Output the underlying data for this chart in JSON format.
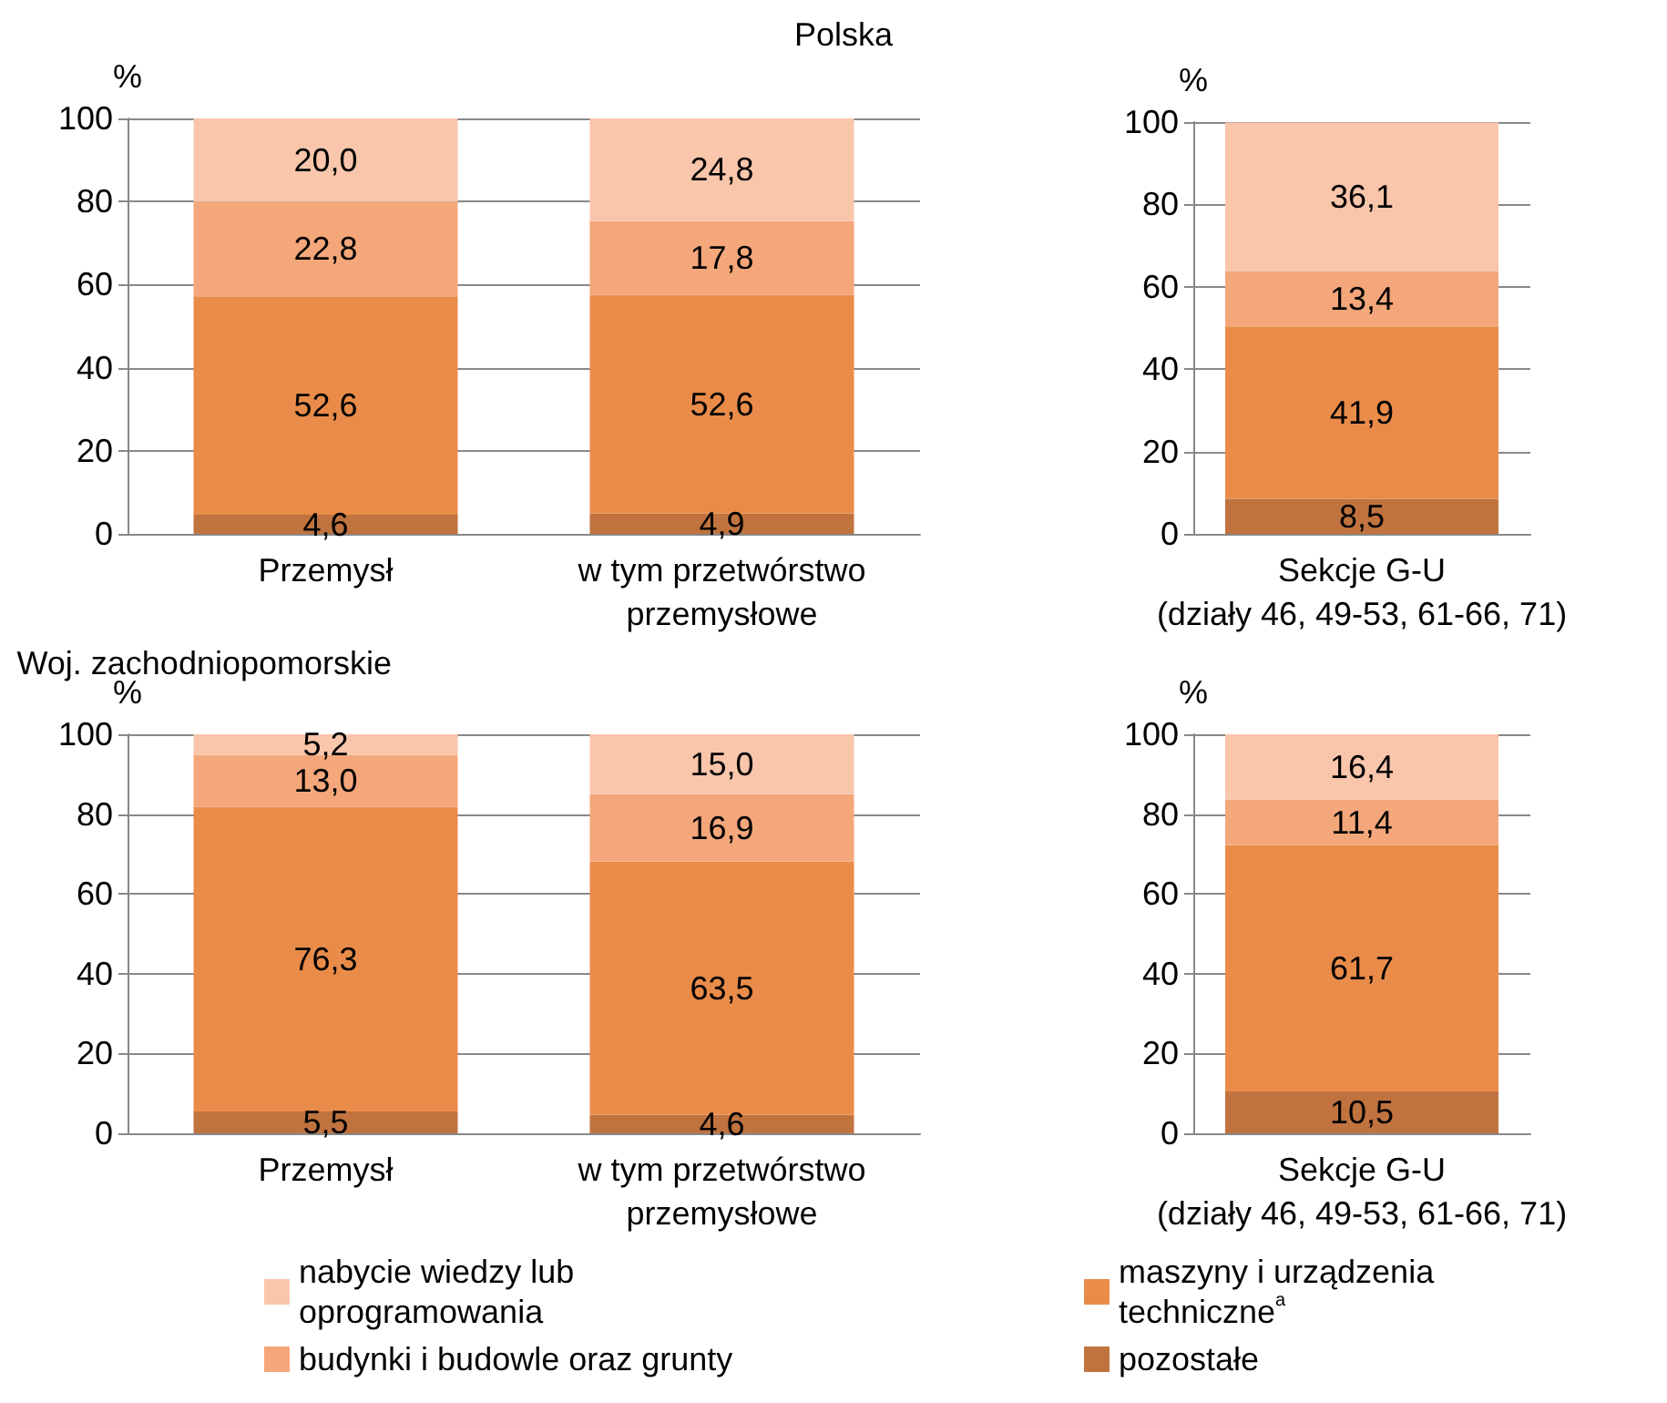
{
  "chart_data": [
    {
      "type": "bar",
      "title": "Polska",
      "ylabel": "%",
      "categories": [
        "Przemysł",
        "w tym przetwórstwo\nprzemysłowe"
      ],
      "stacked": true,
      "grid": "y",
      "ylim": [
        0,
        100
      ],
      "yticks": [
        0,
        20,
        40,
        60,
        80,
        100
      ],
      "legend": false,
      "series": [
        {
          "color": "#c0733f",
          "values": [
            4.6,
            4.9
          ],
          "value_labels": [
            "4,6",
            "4,9"
          ]
        },
        {
          "color": "#e98c4a",
          "values": [
            52.6,
            52.6
          ],
          "value_labels": [
            "52,6",
            "52,6"
          ]
        },
        {
          "color": "#f4a77a",
          "values": [
            22.8,
            17.8
          ],
          "value_labels": [
            "22,8",
            "17,8"
          ]
        },
        {
          "color": "#f9c6ab",
          "values": [
            20.0,
            24.8
          ],
          "value_labels": [
            "20,0",
            "24,8"
          ]
        }
      ]
    },
    {
      "type": "bar",
      "ylabel": "%",
      "categories": [
        "Sekcje G-U\n(działy 46, 49-53, 61-66, 71)"
      ],
      "stacked": true,
      "grid": "y",
      "ylim": [
        0,
        100
      ],
      "yticks": [
        0,
        20,
        40,
        60,
        80,
        100
      ],
      "legend": false,
      "series": [
        {
          "color": "#c0733f",
          "values": [
            8.5
          ],
          "value_labels": [
            "8,5"
          ]
        },
        {
          "color": "#e98c4a",
          "values": [
            41.9
          ],
          "value_labels": [
            "41,9"
          ]
        },
        {
          "color": "#f4a77a",
          "values": [
            13.4
          ],
          "value_labels": [
            "13,4"
          ]
        },
        {
          "color": "#f9c6ab",
          "values": [
            36.1
          ],
          "value_labels": [
            "36,1"
          ]
        }
      ]
    },
    {
      "type": "bar",
      "title": "Woj. zachodniopomorskie",
      "ylabel": "%",
      "categories": [
        "Przemysł",
        "w tym przetwórstwo\nprzemysłowe"
      ],
      "stacked": true,
      "grid": "y",
      "ylim": [
        0,
        100
      ],
      "yticks": [
        0,
        20,
        40,
        60,
        80,
        100
      ],
      "legend": "bottom left",
      "series": [
        {
          "color": "#c0733f",
          "values": [
            5.5,
            4.6
          ],
          "value_labels": [
            "5,5",
            "4,6"
          ]
        },
        {
          "color": "#e98c4a",
          "values": [
            76.3,
            63.5
          ],
          "value_labels": [
            "76,3",
            "63,5"
          ]
        },
        {
          "name": "budynki i budowle oraz grunty",
          "color": "#f4a77a",
          "values": [
            13.0,
            16.9
          ],
          "value_labels": [
            "13,0",
            "16,9"
          ]
        },
        {
          "name": "nabycie wiedzy lub oprogramowania",
          "color": "#f9c6ab",
          "values": [
            5.2,
            15.0
          ],
          "value_labels": [
            "5,2",
            "15,0"
          ]
        }
      ]
    },
    {
      "type": "bar",
      "ylabel": "%",
      "categories": [
        "Sekcje G-U\n(działy 46, 49-53, 61-66, 71)"
      ],
      "stacked": true,
      "grid": "y",
      "ylim": [
        0,
        100
      ],
      "yticks": [
        0,
        20,
        40,
        60,
        80,
        100
      ],
      "legend": "bottom left",
      "series": [
        {
          "name": "pozostałe",
          "color": "#c0733f",
          "values": [
            10.5
          ],
          "value_labels": [
            "10,5"
          ]
        },
        {
          "name": "maszyny i urządzenia techniczne$^{a}$",
          "color": "#e98c4a",
          "values": [
            61.7
          ],
          "value_labels": [
            "61,7"
          ]
        },
        {
          "color": "#f4a77a",
          "values": [
            11.4
          ],
          "value_labels": [
            "11,4"
          ]
        },
        {
          "color": "#f9c6ab",
          "values": [
            16.4
          ],
          "value_labels": [
            "16,4"
          ]
        }
      ]
    }
  ]
}
